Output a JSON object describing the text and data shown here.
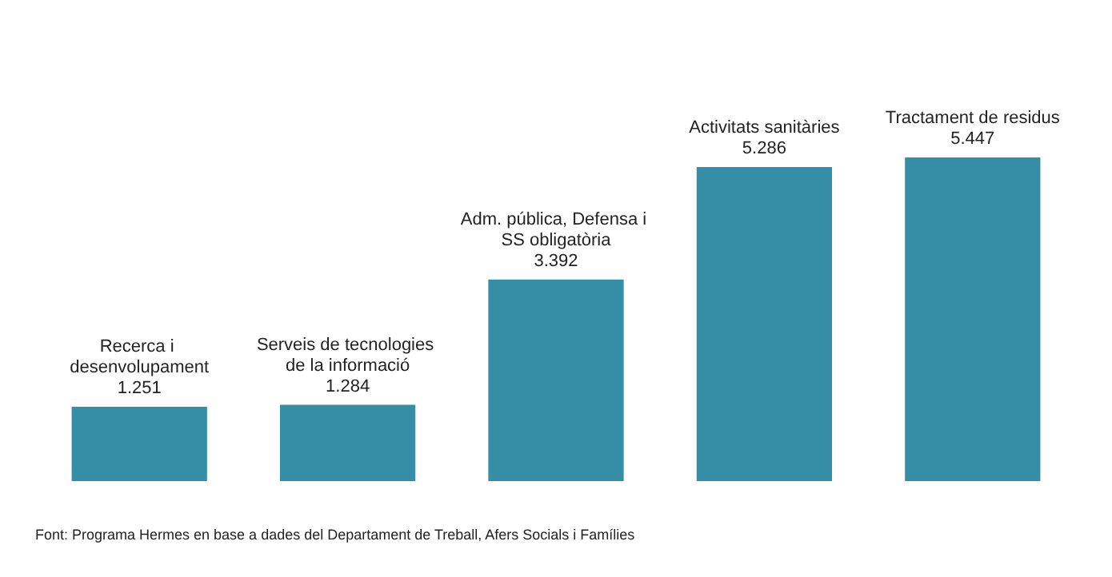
{
  "chart_data": {
    "type": "bar",
    "categories": [
      "Recerca i desenvolupament",
      "Serveis de tecnologies de la informació",
      "Adm. pública, Defensa i SS obligatòria",
      "Activitats sanitàries",
      "Tractament de residus"
    ],
    "values": [
      1251,
      1284,
      3392,
      5286,
      5447
    ],
    "value_labels": [
      "1.251",
      "1.284",
      "3.392",
      "5.286",
      "5.447"
    ],
    "color": "#368ea6",
    "annotations": [
      "Font: Programa Hermes en base a dades del Departament de Treball, Afers Socials i Famílies"
    ]
  }
}
